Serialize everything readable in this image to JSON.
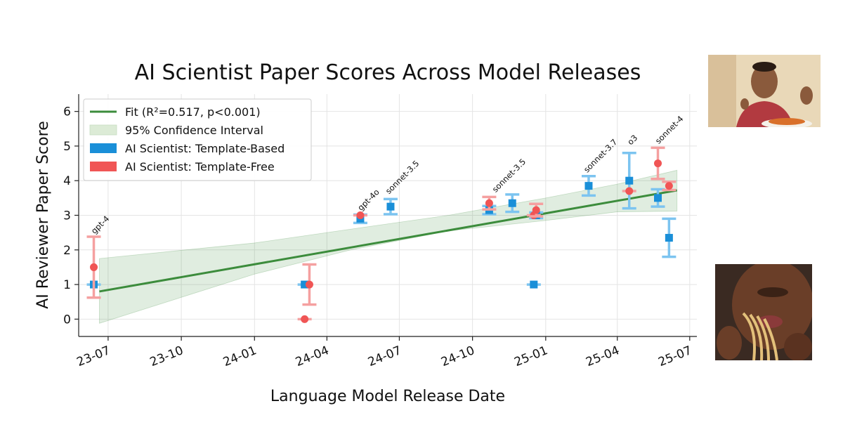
{
  "chart_data": {
    "type": "scatter",
    "title": "AI Scientist Paper Scores Across Model Releases",
    "xlabel": "Language Model Release Date",
    "ylabel": "AI Reviewer Paper Score",
    "xlim": [
      "2023-05-25",
      "2025-07-10"
    ],
    "ylim": [
      -0.5,
      6.5
    ],
    "x_ticks": [
      {
        "date": "2023-07-01",
        "label": "23-07"
      },
      {
        "date": "2023-10-01",
        "label": "23-10"
      },
      {
        "date": "2024-01-01",
        "label": "24-01"
      },
      {
        "date": "2024-04-01",
        "label": "24-04"
      },
      {
        "date": "2024-07-01",
        "label": "24-07"
      },
      {
        "date": "2024-10-01",
        "label": "24-10"
      },
      {
        "date": "2025-01-01",
        "label": "25-01"
      },
      {
        "date": "2025-04-01",
        "label": "25-04"
      },
      {
        "date": "2025-07-01",
        "label": "25-07"
      }
    ],
    "y_ticks": [
      0,
      1,
      2,
      3,
      4,
      5,
      6
    ],
    "grid": true,
    "legend_position": "top-left",
    "legend": [
      {
        "label": "Fit (R²=0.517, p<0.001)",
        "kind": "line",
        "color": "#3c8c3c"
      },
      {
        "label": "95% Confidence Interval",
        "kind": "band",
        "color": "#dcebd6"
      },
      {
        "label": "AI Scientist: Template-Based",
        "kind": "patch",
        "color": "#1a8fd8"
      },
      {
        "label": "AI Scientist: Template-Free",
        "kind": "patch",
        "color": "#f05555"
      }
    ],
    "fit": {
      "color": "#3c8c3c",
      "line": [
        {
          "x": "2023-06-20",
          "y": 0.8
        },
        {
          "x": "2025-06-15",
          "y": 3.72
        }
      ],
      "ci_upper": [
        {
          "x": "2023-06-20",
          "y": 1.75
        },
        {
          "x": "2024-01-01",
          "y": 2.2
        },
        {
          "x": "2024-05-01",
          "y": 2.6
        },
        {
          "x": "2024-09-01",
          "y": 3.0
        },
        {
          "x": "2025-01-01",
          "y": 3.5
        },
        {
          "x": "2025-04-01",
          "y": 3.9
        },
        {
          "x": "2025-06-15",
          "y": 4.3
        }
      ],
      "ci_lower": [
        {
          "x": "2023-06-20",
          "y": -0.12
        },
        {
          "x": "2024-01-01",
          "y": 1.3
        },
        {
          "x": "2024-05-01",
          "y": 2.0
        },
        {
          "x": "2024-09-01",
          "y": 2.55
        },
        {
          "x": "2025-01-01",
          "y": 2.85
        },
        {
          "x": "2025-04-01",
          "y": 3.1
        },
        {
          "x": "2025-06-15",
          "y": 3.12
        }
      ]
    },
    "series": [
      {
        "name": "AI Scientist: Template-Based",
        "marker": "square",
        "color": "#1a8fd8",
        "error_color": "#7cc4f0",
        "points": [
          {
            "x": "2023-06-13",
            "y": 1.0,
            "err": 0.0
          },
          {
            "x": "2024-03-04",
            "y": 1.0,
            "err": 0.0
          },
          {
            "x": "2024-05-13",
            "y": 2.9,
            "err": 0.12
          },
          {
            "x": "2024-06-20",
            "y": 3.25,
            "err": 0.22
          },
          {
            "x": "2024-10-22",
            "y": 3.15,
            "err": 0.12
          },
          {
            "x": "2024-11-20",
            "y": 3.35,
            "err": 0.25
          },
          {
            "x": "2024-12-17",
            "y": 1.0,
            "err": 0.0
          },
          {
            "x": "2024-12-20",
            "y": 3.0,
            "err": 0.08
          },
          {
            "x": "2025-02-24",
            "y": 3.85,
            "err": 0.28
          },
          {
            "x": "2025-04-16",
            "y": 4.0,
            "err": 0.8
          },
          {
            "x": "2025-05-22",
            "y": 3.5,
            "err": 0.25
          },
          {
            "x": "2025-06-05",
            "y": 2.35,
            "err": 0.55
          }
        ]
      },
      {
        "name": "AI Scientist: Template-Free",
        "marker": "circle",
        "color": "#f05555",
        "error_color": "#f5a0a0",
        "points": [
          {
            "x": "2023-06-13",
            "y": 1.5,
            "err": 0.88
          },
          {
            "x": "2024-03-04",
            "y": 0.0,
            "err": 0.0
          },
          {
            "x": "2024-03-10",
            "y": 1.0,
            "err": 0.58
          },
          {
            "x": "2024-05-13",
            "y": 3.0,
            "err": 0.0
          },
          {
            "x": "2024-10-22",
            "y": 3.35,
            "err": 0.18
          },
          {
            "x": "2024-12-17",
            "y": 3.0,
            "err": 0.0
          },
          {
            "x": "2024-12-20",
            "y": 3.15,
            "err": 0.18
          },
          {
            "x": "2025-04-16",
            "y": 3.7,
            "err": 0.0
          },
          {
            "x": "2025-05-22",
            "y": 4.5,
            "err": 0.45
          },
          {
            "x": "2025-06-05",
            "y": 3.85,
            "err": 0.12
          }
        ]
      }
    ],
    "annotations": [
      {
        "text": "gpt-4",
        "x": "2023-06-14",
        "y": 2.45
      },
      {
        "text": "gpt-4o",
        "x": "2024-05-14",
        "y": 3.12
      },
      {
        "text": "sonnet-3.5",
        "x": "2024-06-18",
        "y": 3.6
      },
      {
        "text": "sonnet-3.5",
        "x": "2024-10-30",
        "y": 3.65
      },
      {
        "text": "sonnet-3.7",
        "x": "2025-02-22",
        "y": 4.22
      },
      {
        "text": "o3",
        "x": "2025-04-18",
        "y": 5.02
      },
      {
        "text": "sonnet-4",
        "x": "2025-05-23",
        "y": 5.05
      }
    ]
  },
  "photos": [
    {
      "name": "photo-man-eating-spaghetti",
      "palette": {
        "bg": "#e9d8b8",
        "skin": "#8a5a3c",
        "shirt": "#b23a40",
        "food": "#d9702a"
      }
    },
    {
      "name": "photo-man-eating-spaghetti-closeup",
      "palette": {
        "bg": "#3a2a22",
        "skin": "#6a3e28",
        "food": "#e3c07a"
      }
    }
  ]
}
